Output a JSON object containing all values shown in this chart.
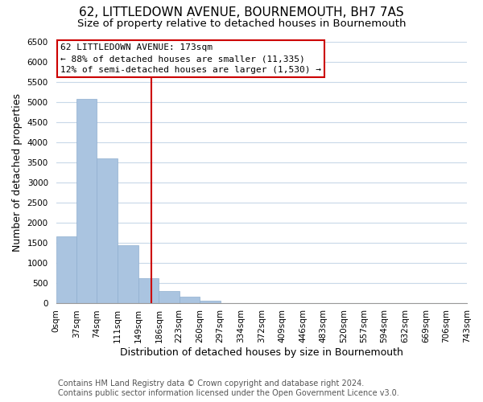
{
  "title": "62, LITTLEDOWN AVENUE, BOURNEMOUTH, BH7 7AS",
  "subtitle": "Size of property relative to detached houses in Bournemouth",
  "xlabel": "Distribution of detached houses by size in Bournemouth",
  "ylabel": "Number of detached properties",
  "footer_line1": "Contains HM Land Registry data © Crown copyright and database right 2024.",
  "footer_line2": "Contains public sector information licensed under the Open Government Licence v3.0.",
  "bin_edges": [
    0,
    37,
    74,
    111,
    149,
    186,
    223,
    260,
    297,
    334,
    372,
    409,
    446,
    483,
    520,
    557,
    594,
    632,
    669,
    706,
    743
  ],
  "bar_heights": [
    1650,
    5080,
    3600,
    1430,
    610,
    300,
    150,
    60,
    0,
    0,
    0,
    0,
    0,
    0,
    0,
    0,
    0,
    0,
    0,
    0
  ],
  "bar_color": "#aac4e0",
  "bar_edge_color": "#8faecf",
  "property_size": 173,
  "vline_color": "#cc0000",
  "annotation_title": "62 LITTLEDOWN AVENUE: 173sqm",
  "annotation_line2": "← 88% of detached houses are smaller (11,335)",
  "annotation_line3": "12% of semi-detached houses are larger (1,530) →",
  "annotation_box_color": "#ffffff",
  "annotation_box_edge": "#cc0000",
  "ylim": [
    0,
    6500
  ],
  "yticks": [
    0,
    500,
    1000,
    1500,
    2000,
    2500,
    3000,
    3500,
    4000,
    4500,
    5000,
    5500,
    6000,
    6500
  ],
  "xlim_start": 0,
  "xlim_end": 743,
  "tick_labels": [
    "0sqm",
    "37sqm",
    "74sqm",
    "111sqm",
    "149sqm",
    "186sqm",
    "223sqm",
    "260sqm",
    "297sqm",
    "334sqm",
    "372sqm",
    "409sqm",
    "446sqm",
    "483sqm",
    "520sqm",
    "557sqm",
    "594sqm",
    "632sqm",
    "669sqm",
    "706sqm",
    "743sqm"
  ],
  "background_color": "#ffffff",
  "grid_color": "#c8d8e8",
  "title_fontsize": 11,
  "subtitle_fontsize": 9.5,
  "axis_label_fontsize": 9,
  "tick_fontsize": 7.5,
  "footer_fontsize": 7,
  "annotation_fontsize": 8
}
